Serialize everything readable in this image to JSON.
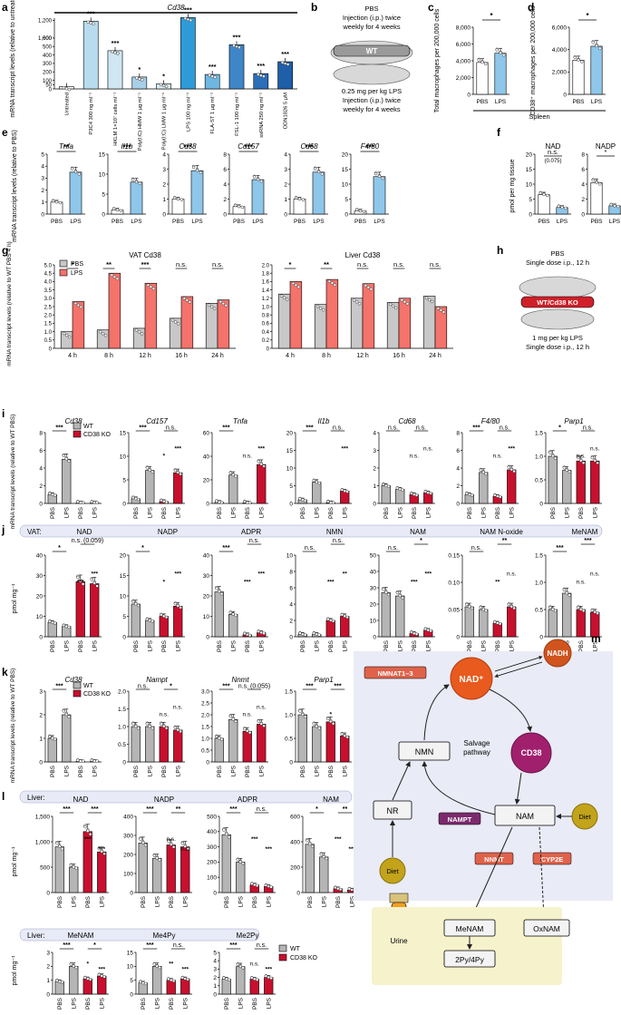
{
  "panels": {
    "a": {
      "label": "a",
      "gene": "Cd38",
      "ylabel": "mRNA transcript levels (relative to untreated)",
      "ticks": [
        "0",
        "50",
        "100",
        "200",
        "300",
        "400",
        "500",
        "600",
        "1,000",
        "1,200"
      ],
      "categories": [
        "Untreated",
        "P3C4 300 ng ml⁻¹",
        "HKLM 1×10⁷ cells ml⁻¹",
        "Poly(I:C) HMW 1 µg ml⁻¹",
        "Poly(I:C) LMW 1 µg ml⁻¹",
        "LPS 100 ng ml⁻¹",
        "FLA-ST 1 µg ml⁻¹",
        "FSL-1 100 ng ml⁻¹",
        "ssRNA 250 ng ml⁻¹",
        "ODN1826 5 µM"
      ],
      "values": [
        25,
        1190,
        450,
        140,
        60,
        1230,
        170,
        520,
        180,
        320
      ],
      "sig": [
        "",
        "***",
        "***",
        "*",
        "*",
        "***",
        "***",
        "***",
        "***",
        "***"
      ],
      "colors": [
        "#ffffff",
        "#b8dcee",
        "#cfe6f3",
        "#a7cfe6",
        "#d9ecf6",
        "#2e9bd8",
        "#6fb7e2",
        "#3f86c8",
        "#2a6fb8",
        "#1f5ea8"
      ]
    },
    "b": {
      "label": "b",
      "top": [
        "PBS",
        "Injection (i.p.) twice",
        "weekly for 4 weeks"
      ],
      "strain": "WT",
      "bottom": [
        "0.25 mg per kg LPS",
        "Injection (i.p.) twice",
        "weekly for 4 weeks"
      ]
    },
    "c": {
      "label": "c",
      "ylabel": "Total macrophages per 200,000 cells",
      "ticks": [
        "0",
        "2,000",
        "4,000",
        "6,000",
        "8,000"
      ],
      "categories": [
        "PBS",
        "LPS"
      ],
      "values": [
        3800,
        4900
      ],
      "sig": "*"
    },
    "d": {
      "label": "d",
      "ylabel": "CD38⁺ macrophages per 200,000 cells",
      "ticks": [
        "0",
        "2,000",
        "4,000",
        "6,000"
      ],
      "categories": [
        "PBS",
        "LPS"
      ],
      "values": [
        3050,
        4300
      ],
      "sig": "*",
      "tissue": "Spleen"
    },
    "e": {
      "label": "e",
      "ylabel": "mRNA transcript levels (relative to PBS)",
      "categories": [
        "PBS",
        "LPS"
      ],
      "panels": [
        {
          "gene": "Tnfa",
          "ticks": [
            "0",
            "1",
            "2",
            "3",
            "4",
            "5"
          ],
          "max": 5,
          "values": [
            1.0,
            3.5
          ],
          "sig": "**"
        },
        {
          "gene": "Il1b",
          "ticks": [
            "0",
            "5",
            "10",
            "15"
          ],
          "max": 15,
          "values": [
            1.0,
            8.0
          ],
          "sig": "***"
        },
        {
          "gene": "Cd38",
          "ticks": [
            "0",
            "1",
            "2",
            "3",
            "4"
          ],
          "max": 4,
          "values": [
            1.0,
            2.9
          ],
          "sig": "***"
        },
        {
          "gene": "Cd157",
          "ticks": [
            "0",
            "2",
            "4",
            "6",
            "8"
          ],
          "max": 8,
          "values": [
            1.0,
            4.6
          ],
          "sig": "***"
        },
        {
          "gene": "Cd68",
          "ticks": [
            "0",
            "1",
            "2",
            "3",
            "4"
          ],
          "max": 4,
          "values": [
            1.0,
            2.8
          ],
          "sig": "***"
        },
        {
          "gene": "F4/80",
          "ticks": [
            "0",
            "5",
            "10",
            "15",
            "20"
          ],
          "max": 20,
          "values": [
            1.0,
            12.5
          ],
          "sig": "***"
        }
      ]
    },
    "f": {
      "label": "f",
      "ylabel": "pmol per mg tissue",
      "categories": [
        "PBS",
        "LPS"
      ],
      "panels": [
        {
          "title": "NAD",
          "ticks": [
            "0",
            "5",
            "10",
            "15",
            "20"
          ],
          "max": 20,
          "values": [
            6.5,
            2.2
          ],
          "sig": "n.s.",
          "note": "(0.075)"
        },
        {
          "title": "NADP",
          "ticks": [
            "0",
            "2",
            "4",
            "6",
            "8"
          ],
          "max": 8,
          "values": [
            4.2,
            1.1
          ],
          "sig": "*",
          "note": ""
        }
      ]
    },
    "g": {
      "label": "g",
      "ylabel": "mRNA transcript levels (relative to WT PBS 4 h)",
      "legend": [
        "PBS",
        "LPS"
      ],
      "colors": {
        "pbs": "#c8c8c8",
        "lps": "#f4736b"
      },
      "ticks": [
        "0",
        "0.5",
        "1.0",
        "1.5",
        "2.0",
        "2.5",
        "3.0",
        "3.5",
        "4.0",
        "4.5",
        "5.0"
      ],
      "times": [
        "4 h",
        "8 h",
        "12 h",
        "16 h",
        "24 h"
      ],
      "groups": [
        {
          "title": "VAT Cd38",
          "max": 5,
          "pbs": [
            1.0,
            1.1,
            1.2,
            1.8,
            2.7
          ],
          "lps": [
            2.8,
            4.5,
            3.9,
            3.1,
            2.9
          ],
          "sig": [
            "*",
            "**",
            "***",
            "n.s.",
            "n.s."
          ]
        },
        {
          "title": "Liver Cd38",
          "max": 2.0,
          "pbs": [
            1.3,
            1.05,
            1.2,
            1.1,
            1.25
          ],
          "lps": [
            1.6,
            1.65,
            1.55,
            1.2,
            1.0
          ],
          "sig": [
            "*",
            "**",
            "n.s.",
            "n.s.",
            "n.s."
          ]
        }
      ],
      "liver_ticks": [
        "0",
        "0.2",
        "0.4",
        "0.6",
        "0.8",
        "1.0",
        "1.2",
        "1.4",
        "1.6",
        "1.8",
        "2.0"
      ]
    },
    "h": {
      "label": "h",
      "top": [
        "PBS",
        "Single dose i.p., 12 h"
      ],
      "strain": "WT/Cd38 KO",
      "bottom": [
        "1 mg per kg LPS",
        "Single dose i.p., 12 h"
      ]
    },
    "i": {
      "label": "i",
      "ylabel": "mRNA transcript levels (relative to WT PBS)",
      "legend": [
        "WT",
        "CD38 KO"
      ],
      "categories": [
        "PBS",
        "LPS",
        "PBS",
        "LPS"
      ],
      "panels": [
        {
          "gene": "Cd38",
          "ticks": [
            "0",
            "2",
            "4",
            "6",
            "8"
          ],
          "max": 8,
          "values": [
            1.0,
            5.0,
            0.05,
            0.05
          ],
          "sig": [
            "***",
            "",
            "",
            ""
          ]
        },
        {
          "gene": "Cd157",
          "ticks": [
            "0",
            "5",
            "10",
            "15"
          ],
          "max": 15,
          "values": [
            1.0,
            7.0,
            0.4,
            6.5
          ],
          "sig": [
            "***",
            "***",
            "*",
            "n.s."
          ]
        },
        {
          "gene": "Tnfa",
          "ticks": [
            "0",
            "20",
            "40",
            "60"
          ],
          "max": 60,
          "values": [
            1.0,
            24.0,
            0.5,
            33.0
          ],
          "sig": [
            "***",
            "***",
            "n.s.",
            ""
          ]
        },
        {
          "gene": "Il1b",
          "ticks": [
            "0",
            "5",
            "10",
            "15",
            "20"
          ],
          "max": 20,
          "values": [
            1.0,
            6.0,
            0.2,
            3.5
          ],
          "sig": [
            "***",
            "***",
            "",
            "n.s."
          ]
        },
        {
          "gene": "Cd68",
          "ticks": [
            "0",
            "1",
            "2",
            "3",
            "4"
          ],
          "max": 4,
          "values": [
            1.0,
            0.8,
            0.5,
            0.6
          ],
          "sig": [
            "n.s.",
            "n.s.",
            "n.s.",
            "n.s."
          ]
        },
        {
          "gene": "F4/80",
          "ticks": [
            "0",
            "2",
            "4",
            "6",
            "8"
          ],
          "max": 8,
          "values": [
            1.0,
            3.5,
            0.8,
            3.8
          ],
          "sig": [
            "***",
            "***",
            "n.s.",
            "n.s."
          ]
        },
        {
          "gene": "Parp1",
          "ticks": [
            "0",
            "0.5",
            "1.0",
            "1.5"
          ],
          "max": 1.5,
          "values": [
            1.0,
            0.7,
            0.9,
            0.9
          ],
          "sig": [
            "*",
            "n.s.",
            "n.s.",
            "n.s."
          ]
        }
      ]
    },
    "j": {
      "label": "j",
      "tissue": "VAT:",
      "ylabel": "pmol mg⁻¹",
      "categories": [
        "PBS",
        "LPS",
        "PBS",
        "LPS"
      ],
      "panels": [
        {
          "title": "NAD",
          "ticks": [
            "0",
            "10",
            "20",
            "30",
            "40"
          ],
          "max": 40,
          "values": [
            7,
            5,
            27,
            26
          ],
          "sig": [
            "*",
            "***",
            "***",
            "n.s. (0.059)"
          ]
        },
        {
          "title": "NADP",
          "ticks": [
            "0",
            "5",
            "10",
            "15",
            "20"
          ],
          "max": 20,
          "values": [
            8,
            4,
            5,
            7.5
          ],
          "sig": [
            "*",
            "*",
            "***",
            ""
          ]
        },
        {
          "title": "ADPR",
          "ticks": [
            "0",
            "10",
            "20",
            "30",
            "40"
          ],
          "max": 40,
          "values": [
            22,
            11,
            1,
            2
          ],
          "sig": [
            "***",
            "***",
            "***",
            "n.s."
          ]
        },
        {
          "title": "NMN",
          "ticks": [
            "0",
            "2",
            "4",
            "6",
            "8",
            "10"
          ],
          "max": 10,
          "values": [
            0.3,
            0.3,
            2.0,
            2.5
          ],
          "sig": [
            "n.s.",
            "***",
            "**",
            "n.s."
          ]
        },
        {
          "title": "NAM",
          "ticks": [
            "0",
            "10",
            "20",
            "30",
            "40",
            "50"
          ],
          "max": 50,
          "values": [
            27,
            25,
            2,
            4
          ],
          "sig": [
            "n.s.",
            "***",
            "***",
            "*"
          ]
        },
        {
          "title": "NAM N-oxide",
          "ticks": [
            "0",
            "0.05",
            "0.10",
            "0.15"
          ],
          "max": 0.15,
          "values": [
            0.055,
            0.05,
            0.025,
            0.055
          ],
          "sig": [
            "n.s.",
            "**",
            "n.s.",
            "**"
          ]
        },
        {
          "title": "MeNAM",
          "ticks": [
            "0",
            "0.5",
            "1.0",
            "1.5"
          ],
          "max": 1.5,
          "values": [
            0.5,
            0.8,
            0.5,
            0.45
          ],
          "sig": [
            "***",
            "n.s.",
            "n.s.",
            "***"
          ]
        }
      ]
    },
    "k": {
      "label": "k",
      "ylabel": "mRNA transcript levels (relative to WT PBS)",
      "legend": [
        "WT",
        "CD38 KO"
      ],
      "categories": [
        "PBS",
        "LPS",
        "PBS",
        "LPS"
      ],
      "panels": [
        {
          "gene": "Cd38",
          "ticks": [
            "0",
            "1",
            "2",
            "3"
          ],
          "max": 3,
          "values": [
            1.0,
            2.0,
            0.02,
            0.02
          ],
          "sig": [
            "***",
            "",
            "",
            ""
          ]
        },
        {
          "gene": "Nampt",
          "ticks": [
            "0",
            "0.5",
            "1.0",
            "1.5",
            "2.0"
          ],
          "max": 2,
          "values": [
            1.0,
            1.0,
            1.0,
            0.9
          ],
          "sig": [
            "n.s.",
            "n.s.",
            "n.s.",
            "*"
          ]
        },
        {
          "gene": "Nnmt",
          "ticks": [
            "0",
            "0.5",
            "1.0",
            "1.5",
            "2.0",
            "2.5",
            "3.0"
          ],
          "max": 3,
          "values": [
            1.0,
            1.8,
            1.3,
            1.6
          ],
          "sig": [
            "***",
            "n.s.",
            "n.s.",
            "n.s. (0.055)"
          ]
        },
        {
          "gene": "Parp1",
          "ticks": [
            "0",
            "0.5",
            "1.0",
            "1.5"
          ],
          "max": 1.5,
          "values": [
            1.0,
            0.75,
            0.85,
            0.55
          ],
          "sig": [
            "***",
            "",
            "*",
            "***"
          ]
        }
      ]
    },
    "l": {
      "label": "l",
      "tissue": "Liver:",
      "ylabel": "pmol mg⁻¹",
      "categories": [
        "PBS",
        "LPS",
        "PBS",
        "LPS"
      ],
      "legend": [
        "WT",
        "CD38 KO"
      ],
      "panels_top": [
        {
          "title": "NAD",
          "ticks": [
            "0",
            "500",
            "1,000",
            "1,500"
          ],
          "max": 1500,
          "values": [
            900,
            500,
            1200,
            800
          ],
          "sig": [
            "***",
            "***",
            "***",
            "***"
          ]
        },
        {
          "title": "NADP",
          "ticks": [
            "0",
            "100",
            "200",
            "300",
            "400"
          ],
          "max": 400,
          "values": [
            260,
            180,
            250,
            240
          ],
          "sig": [
            "***",
            "n.s.",
            "n.s.",
            "**"
          ]
        },
        {
          "title": "ADPR",
          "ticks": [
            "0",
            "100",
            "200",
            "300",
            "400",
            "500"
          ],
          "max": 500,
          "values": [
            380,
            200,
            50,
            40
          ],
          "sig": [
            "***",
            "***",
            "***",
            "n.s."
          ]
        },
        {
          "title": "NAM",
          "ticks": [
            "0",
            "200",
            "400",
            "600"
          ],
          "max": 600,
          "values": [
            380,
            280,
            30,
            20
          ],
          "sig": [
            "*",
            "***",
            "***",
            "**"
          ]
        }
      ],
      "panels_bottom": [
        {
          "title": "MeNAM",
          "ticks": [
            "0",
            "1",
            "2",
            "3"
          ],
          "max": 3,
          "values": [
            0.9,
            2.0,
            1.1,
            1.3
          ],
          "sig": [
            "***",
            "*",
            "***",
            "*"
          ]
        },
        {
          "title": "Me4Py",
          "ticks": [
            "0",
            "5",
            "10",
            "15"
          ],
          "max": 15,
          "values": [
            4,
            10,
            5,
            5.5
          ],
          "sig": [
            "***",
            "**",
            "***",
            "n.s."
          ]
        },
        {
          "title": "Me2Py",
          "ticks": [
            "0",
            "1",
            "2",
            "3",
            "4",
            "5"
          ],
          "max": 5,
          "values": [
            1.8,
            3.3,
            1.8,
            2.0
          ],
          "sig": [
            "***",
            "n.s.",
            "***",
            "n.s."
          ]
        }
      ]
    },
    "m": {
      "label": "m",
      "nodes": {
        "nad": "NAD⁺",
        "nadh": "NADH",
        "cd38": "CD38",
        "nmn": "NMN",
        "salvage": "Salvage pathway",
        "nam": "NAM",
        "nr": "NR",
        "diet1": "Diet",
        "diet2": "Diet",
        "nmnat": "NMNAT1–3",
        "nampt": "NAMPT",
        "nnmt": "NNMT",
        "cyp2e": "CYP2E",
        "menam": "MeNAM",
        "oxnam": "OxNAM",
        "py": "2Py/4Py",
        "urine": "Urine"
      }
    }
  }
}
